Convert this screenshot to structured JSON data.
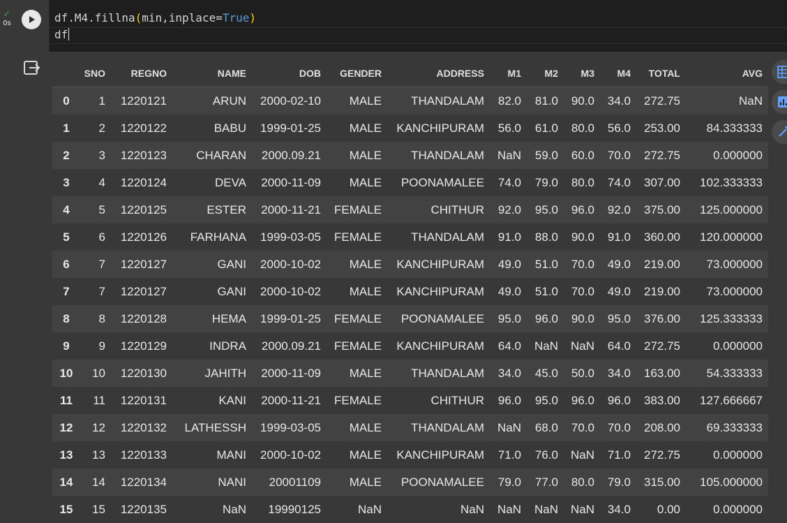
{
  "cell": {
    "status_check": "✓",
    "exec_time": "0s",
    "code": {
      "line1_pre": "df.M4.fillna",
      "line1_paren_open": "(",
      "line1_args": "min,inplace=",
      "line1_kw": "True",
      "line1_paren_close": ")",
      "line2": "df"
    }
  },
  "table": {
    "columns": [
      "",
      "SNO",
      "REGNO",
      "NAME",
      "DOB",
      "GENDER",
      "ADDRESS",
      "M1",
      "M2",
      "M3",
      "M4",
      "TOTAL",
      "AVG"
    ],
    "rows": [
      [
        "0",
        "1",
        "1220121",
        "ARUN",
        "2000-02-10",
        "MALE",
        "THANDALAM",
        "82.0",
        "81.0",
        "90.0",
        "34.0",
        "272.75",
        "NaN"
      ],
      [
        "1",
        "2",
        "1220122",
        "BABU",
        "1999-01-25",
        "MALE",
        "KANCHIPURAM",
        "56.0",
        "61.0",
        "80.0",
        "56.0",
        "253.00",
        "84.333333"
      ],
      [
        "2",
        "3",
        "1220123",
        "CHARAN",
        "2000.09.21",
        "MALE",
        "THANDALAM",
        "NaN",
        "59.0",
        "60.0",
        "70.0",
        "272.75",
        "0.000000"
      ],
      [
        "3",
        "4",
        "1220124",
        "DEVA",
        "2000-11-09",
        "MALE",
        "POONAMALEE",
        "74.0",
        "79.0",
        "80.0",
        "74.0",
        "307.00",
        "102.333333"
      ],
      [
        "4",
        "5",
        "1220125",
        "ESTER",
        "2000-11-21",
        "FEMALE",
        "CHITHUR",
        "92.0",
        "95.0",
        "96.0",
        "92.0",
        "375.00",
        "125.000000"
      ],
      [
        "5",
        "6",
        "1220126",
        "FARHANA",
        "1999-03-05",
        "FEMALE",
        "THANDALAM",
        "91.0",
        "88.0",
        "90.0",
        "91.0",
        "360.00",
        "120.000000"
      ],
      [
        "6",
        "7",
        "1220127",
        "GANI",
        "2000-10-02",
        "MALE",
        "KANCHIPURAM",
        "49.0",
        "51.0",
        "70.0",
        "49.0",
        "219.00",
        "73.000000"
      ],
      [
        "7",
        "7",
        "1220127",
        "GANI",
        "2000-10-02",
        "MALE",
        "KANCHIPURAM",
        "49.0",
        "51.0",
        "70.0",
        "49.0",
        "219.00",
        "73.000000"
      ],
      [
        "8",
        "8",
        "1220128",
        "HEMA",
        "1999-01-25",
        "FEMALE",
        "POONAMALEE",
        "95.0",
        "96.0",
        "90.0",
        "95.0",
        "376.00",
        "125.333333"
      ],
      [
        "9",
        "9",
        "1220129",
        "INDRA",
        "2000.09.21",
        "FEMALE",
        "KANCHIPURAM",
        "64.0",
        "NaN",
        "NaN",
        "64.0",
        "272.75",
        "0.000000"
      ],
      [
        "10",
        "10",
        "1220130",
        "JAHITH",
        "2000-11-09",
        "MALE",
        "THANDALAM",
        "34.0",
        "45.0",
        "50.0",
        "34.0",
        "163.00",
        "54.333333"
      ],
      [
        "11",
        "11",
        "1220131",
        "KANI",
        "2000-11-21",
        "FEMALE",
        "CHITHUR",
        "96.0",
        "95.0",
        "96.0",
        "96.0",
        "383.00",
        "127.666667"
      ],
      [
        "12",
        "12",
        "1220132",
        "LATHESSH",
        "1999-03-05",
        "MALE",
        "THANDALAM",
        "NaN",
        "68.0",
        "70.0",
        "70.0",
        "208.00",
        "69.333333"
      ],
      [
        "13",
        "13",
        "1220133",
        "MANI",
        "2000-10-02",
        "MALE",
        "KANCHIPURAM",
        "71.0",
        "76.0",
        "NaN",
        "71.0",
        "272.75",
        "0.000000"
      ],
      [
        "14",
        "14",
        "1220134",
        "NANI",
        "20001109",
        "MALE",
        "POONAMALEE",
        "79.0",
        "77.0",
        "80.0",
        "79.0",
        "315.00",
        "105.000000"
      ],
      [
        "15",
        "15",
        "1220135",
        "NaN",
        "19990125",
        "NaN",
        "NaN",
        "NaN",
        "NaN",
        "NaN",
        "34.0",
        "0.00",
        "0.000000"
      ]
    ]
  },
  "icons": {
    "run": "play-icon",
    "output": "output-icon",
    "tools": [
      "table-icon",
      "chart-icon",
      "magic-wand-icon"
    ]
  }
}
